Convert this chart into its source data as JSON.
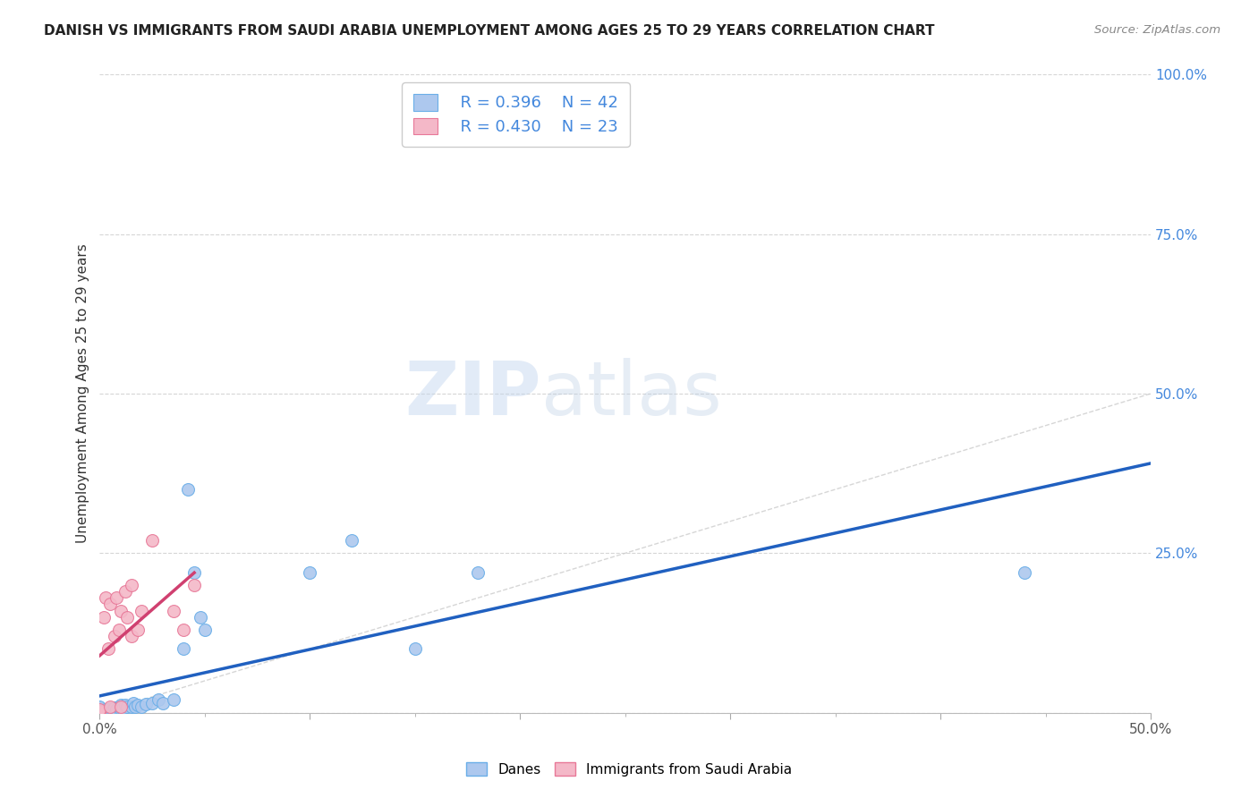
{
  "title": "DANISH VS IMMIGRANTS FROM SAUDI ARABIA UNEMPLOYMENT AMONG AGES 25 TO 29 YEARS CORRELATION CHART",
  "source": "Source: ZipAtlas.com",
  "ylabel": "Unemployment Among Ages 25 to 29 years",
  "xlim": [
    0,
    0.5
  ],
  "ylim": [
    0,
    1.0
  ],
  "xticks": [
    0.0,
    0.1,
    0.2,
    0.3,
    0.4,
    0.5
  ],
  "xticklabels_major": [
    "0.0%",
    "",
    "",
    "",
    "",
    "50.0%"
  ],
  "xminorticks": [
    0.05,
    0.1,
    0.15,
    0.2,
    0.25,
    0.3,
    0.35,
    0.4,
    0.45
  ],
  "yticks": [
    0.0,
    0.25,
    0.5,
    0.75,
    1.0
  ],
  "yticklabels": [
    "",
    "25.0%",
    "50.0%",
    "75.0%",
    "100.0%"
  ],
  "danes_color": "#adc8ee",
  "danes_edge_color": "#6aaee8",
  "immigrants_color": "#f4b8c8",
  "immigrants_edge_color": "#e87898",
  "danes_line_color": "#2060c0",
  "immigrants_line_color": "#d04070",
  "diagonal_color": "#cccccc",
  "legend_R_danes": "R = 0.396",
  "legend_N_danes": "N = 42",
  "legend_R_immigrants": "R = 0.430",
  "legend_N_immigrants": "N = 23",
  "legend_color": "#4488dd",
  "danes_x": [
    0.0,
    0.0,
    0.0,
    0.0,
    0.0,
    0.002,
    0.002,
    0.003,
    0.004,
    0.004,
    0.005,
    0.005,
    0.006,
    0.007,
    0.008,
    0.009,
    0.01,
    0.01,
    0.01,
    0.011,
    0.012,
    0.013,
    0.015,
    0.016,
    0.017,
    0.018,
    0.02,
    0.022,
    0.025,
    0.028,
    0.03,
    0.035,
    0.04,
    0.042,
    0.045,
    0.048,
    0.05,
    0.1,
    0.12,
    0.15,
    0.18,
    0.44
  ],
  "danes_y": [
    0.0,
    0.003,
    0.005,
    0.008,
    0.01,
    0.0,
    0.003,
    0.005,
    0.0,
    0.004,
    0.003,
    0.006,
    0.005,
    0.008,
    0.005,
    0.01,
    0.003,
    0.007,
    0.012,
    0.006,
    0.012,
    0.009,
    0.01,
    0.015,
    0.01,
    0.012,
    0.01,
    0.013,
    0.015,
    0.02,
    0.015,
    0.02,
    0.1,
    0.35,
    0.22,
    0.15,
    0.13,
    0.22,
    0.27,
    0.1,
    0.22,
    0.22
  ],
  "immigrants_x": [
    0.0,
    0.0,
    0.0,
    0.002,
    0.003,
    0.004,
    0.005,
    0.005,
    0.007,
    0.008,
    0.009,
    0.01,
    0.01,
    0.012,
    0.013,
    0.015,
    0.015,
    0.018,
    0.02,
    0.025,
    0.035,
    0.04,
    0.045
  ],
  "immigrants_y": [
    0.0,
    0.003,
    0.005,
    0.15,
    0.18,
    0.1,
    0.01,
    0.17,
    0.12,
    0.18,
    0.13,
    0.01,
    0.16,
    0.19,
    0.15,
    0.12,
    0.2,
    0.13,
    0.16,
    0.27,
    0.16,
    0.13,
    0.2
  ],
  "watermark_zip": "ZIP",
  "watermark_atlas": "atlas",
  "marker_size": 100
}
